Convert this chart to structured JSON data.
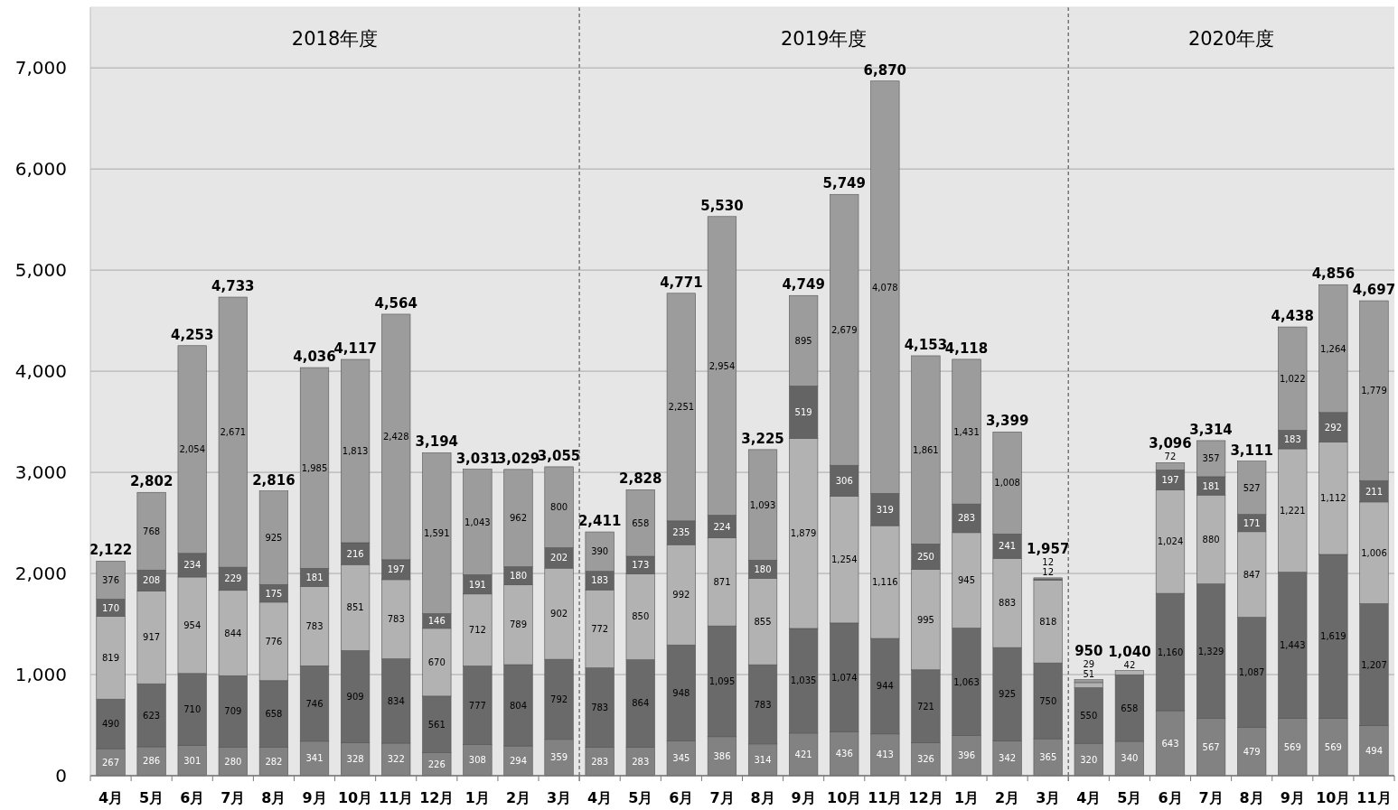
{
  "chart_data": [
    {
      "type": "bar",
      "stacked": true,
      "grid": "y",
      "title": "2018年度",
      "tick_labels": true,
      "categories": [
        "4月",
        "5月",
        "6月",
        "7月",
        "8月",
        "9月",
        "10月",
        "11月",
        "12月",
        "1月",
        "2月",
        "3月"
      ],
      "ylim": [
        0,
        7600
      ],
      "yticks": [
        {
          "value": 0,
          "label": "0"
        },
        {
          "value": 1000,
          "label": "1,000"
        },
        {
          "value": 2000,
          "label": "2,000"
        },
        {
          "value": 3000,
          "label": "3,000"
        },
        {
          "value": 4000,
          "label": "4,000"
        },
        {
          "value": 5000,
          "label": "5,000"
        },
        {
          "value": 6000,
          "label": "6,000"
        },
        {
          "value": 7000,
          "label": "7,000"
        }
      ],
      "series": [
        {
          "color": "#828282",
          "values": [
            267,
            286,
            301,
            280,
            282,
            341,
            328,
            322,
            226,
            308,
            294,
            359
          ],
          "value_labels": [
            "267",
            "286",
            "301",
            "280",
            "282",
            "341",
            "328",
            "322",
            "226",
            "308",
            "294",
            "359"
          ]
        },
        {
          "color": "#6a6a6a",
          "values": [
            490,
            623,
            710,
            709,
            658,
            746,
            909,
            834,
            561,
            777,
            804,
            792
          ],
          "value_labels": [
            "490",
            "623",
            "710",
            "709",
            "658",
            "746",
            "909",
            "834",
            "561",
            "777",
            "804",
            "792"
          ]
        },
        {
          "color": "#b2b2b2",
          "values": [
            819,
            917,
            954,
            844,
            776,
            783,
            851,
            783,
            670,
            712,
            789,
            902
          ],
          "value_labels": [
            "819",
            "917",
            "954",
            "844",
            "776",
            "783",
            "851",
            "783",
            "670",
            "712",
            "789",
            "902"
          ]
        },
        {
          "color": "#646464",
          "values": [
            170,
            208,
            234,
            229,
            175,
            181,
            216,
            197,
            146,
            191,
            180,
            202
          ],
          "value_labels": [
            "170",
            "208",
            "234",
            "229",
            "175",
            "181",
            "216",
            "197",
            "146",
            "191",
            "180",
            "202"
          ]
        },
        {
          "color": "#9c9c9c",
          "values": [
            376,
            768,
            2054,
            2671,
            925,
            1985,
            1813,
            2428,
            1591,
            1043,
            962,
            800
          ],
          "value_labels": [
            "376",
            "768",
            "2,054",
            "2,671",
            "925",
            "1,985",
            "1,813",
            "2,428",
            "1,591",
            "1,043",
            "962",
            "800"
          ]
        }
      ],
      "totals": [
        "2,122",
        "2,802",
        "4,253",
        "4,733",
        "2,816",
        "4,036",
        "4,117",
        "4,564",
        "3,194",
        "3,031",
        "3,029",
        "3,055"
      ]
    },
    {
      "type": "bar",
      "stacked": true,
      "grid": "y",
      "title": "2019年度",
      "tick_labels": "x",
      "categories": [
        "4月",
        "5月",
        "6月",
        "7月",
        "8月",
        "9月",
        "10月",
        "11月",
        "12月",
        "1月",
        "2月",
        "3月"
      ],
      "ylim": [
        0,
        7600
      ],
      "yticks": [
        {
          "value": 0,
          "label": null
        },
        {
          "value": 1000,
          "label": null
        },
        {
          "value": 2000,
          "label": null
        },
        {
          "value": 3000,
          "label": null
        },
        {
          "value": 4000,
          "label": null
        },
        {
          "value": 5000,
          "label": null
        },
        {
          "value": 6000,
          "label": null
        },
        {
          "value": 7000,
          "label": null
        }
      ],
      "series": [
        {
          "color": "#828282",
          "values": [
            283,
            283,
            345,
            386,
            314,
            421,
            436,
            413,
            326,
            396,
            342,
            365
          ],
          "value_labels": [
            "283",
            "283",
            "345",
            "386",
            "314",
            "421",
            "436",
            "413",
            "326",
            "396",
            "342",
            "365"
          ]
        },
        {
          "color": "#6a6a6a",
          "values": [
            783,
            864,
            948,
            1095,
            783,
            1035,
            1074,
            944,
            721,
            1063,
            925,
            750
          ],
          "value_labels": [
            "783",
            "864",
            "948",
            "1,095",
            "783",
            "1,035",
            "1,074",
            "944",
            "721",
            "1,063",
            "925",
            "750"
          ]
        },
        {
          "color": "#b2b2b2",
          "values": [
            772,
            850,
            992,
            871,
            855,
            1879,
            1254,
            1116,
            995,
            945,
            883,
            818
          ],
          "value_labels": [
            "772",
            "850",
            "992",
            "871",
            "855",
            "1,879",
            "1,254",
            "1,116",
            "995",
            "945",
            "883",
            "818"
          ]
        },
        {
          "color": "#646464",
          "values": [
            183,
            173,
            235,
            224,
            180,
            519,
            306,
            319,
            250,
            283,
            241,
            12
          ],
          "value_labels": [
            "183",
            "173",
            "235",
            "224",
            "180",
            "519",
            "306",
            "319",
            "250",
            "283",
            "241",
            "12"
          ]
        },
        {
          "color": "#9c9c9c",
          "values": [
            390,
            658,
            2251,
            2954,
            1093,
            895,
            2679,
            4078,
            1861,
            1431,
            1008,
            12
          ],
          "value_labels": [
            "390",
            "658",
            "2,251",
            "2,954",
            "1,093",
            "895",
            "2,679",
            "4,078",
            "1,861",
            "1,431",
            "1,008",
            "12"
          ]
        }
      ],
      "totals": [
        "2,411",
        "2,828",
        "4,771",
        "5,530",
        "3,225",
        "4,749",
        "5,749",
        "6,870",
        "4,153",
        "4,118",
        "3,399",
        "1,957"
      ]
    },
    {
      "type": "bar",
      "stacked": true,
      "grid": "y",
      "title": "2020年度",
      "tick_labels": "x",
      "categories": [
        "4月",
        "5月",
        "6月",
        "7月",
        "8月",
        "9月",
        "10月",
        "11月"
      ],
      "ylim": [
        0,
        7600
      ],
      "yticks": [
        {
          "value": 0,
          "label": null
        },
        {
          "value": 1000,
          "label": null
        },
        {
          "value": 2000,
          "label": null
        },
        {
          "value": 3000,
          "label": null
        },
        {
          "value": 4000,
          "label": null
        },
        {
          "value": 5000,
          "label": null
        },
        {
          "value": 6000,
          "label": null
        },
        {
          "value": 7000,
          "label": null
        }
      ],
      "series": [
        {
          "color": "#828282",
          "values": [
            320,
            340,
            643,
            567,
            479,
            569,
            569,
            494
          ],
          "value_labels": [
            "320",
            "340",
            "643",
            "567",
            "479",
            "569",
            "569",
            "494"
          ]
        },
        {
          "color": "#6a6a6a",
          "values": [
            550,
            658,
            1160,
            1329,
            1087,
            1443,
            1619,
            1207
          ],
          "value_labels": [
            "550",
            "658",
            "1,160",
            "1,329",
            "1,087",
            "1,443",
            "1,619",
            "1,207"
          ]
        },
        {
          "color": "#b2b2b2",
          "values": [
            51,
            42,
            1024,
            880,
            847,
            1221,
            1112,
            1006
          ],
          "value_labels": [
            "51",
            "42",
            "1,024",
            "880",
            "847",
            "1,221",
            "1,112",
            "1,006"
          ]
        },
        {
          "color": "#646464",
          "values": [
            null,
            null,
            197,
            181,
            171,
            183,
            292,
            211
          ],
          "value_labels": [
            null,
            null,
            "197",
            "181",
            "171",
            "183",
            "292",
            "211"
          ]
        },
        {
          "color": "#9c9c9c",
          "values": [
            29,
            null,
            72,
            357,
            527,
            1022,
            1264,
            1779
          ],
          "value_labels": [
            "29",
            null,
            "72",
            "357",
            "527",
            "1,022",
            "1,264",
            "1,779"
          ]
        }
      ],
      "totals": [
        "950",
        "1,040",
        "3,096",
        "3,314",
        "3,111",
        "4,438",
        "4,856",
        "4,697"
      ]
    }
  ]
}
